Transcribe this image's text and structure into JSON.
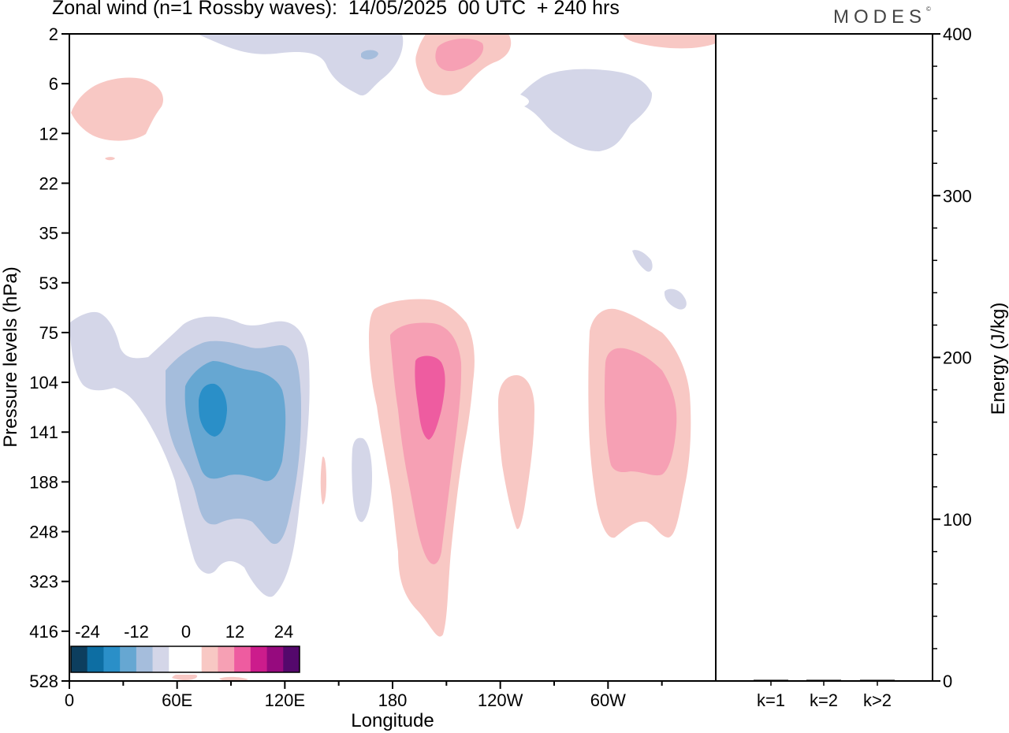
{
  "title": "Zonal wind (n=1 Rossby waves):  14/05/2025  00 UTC  + 240 hrs",
  "logo": "MODES",
  "logo_mark": "©",
  "colors": {
    "neg": [
      "#0d3e5e",
      "#0d6ea3",
      "#2a8fc8",
      "#66a7d2",
      "#a5bddc",
      "#d4d6e8"
    ],
    "zero": "#ffffff",
    "pos": [
      "#f8c8c4",
      "#f6a0b4",
      "#ee5ca0",
      "#cc1c8c",
      "#960a7e",
      "#54086c"
    ]
  },
  "chart_data": [
    {
      "type": "heatmap",
      "title": "Zonal wind (n=1 Rossby waves):  14/05/2025  00 UTC  + 240 hrs",
      "xlabel": "Longitude",
      "ylabel": "Pressure levels (hPa)",
      "x_ticks": [
        "0",
        "60E",
        "120E",
        "180",
        "120W",
        "60W"
      ],
      "x_tick_values": [
        0,
        60,
        120,
        180,
        240,
        300
      ],
      "xlim": [
        0,
        360
      ],
      "y_ticks": [
        "2",
        "6",
        "12",
        "22",
        "35",
        "53",
        "75",
        "104",
        "141",
        "188",
        "248",
        "323",
        "416",
        "528"
      ],
      "y_scale": "pressure levels (top 2 hPa, bottom 528 hPa)",
      "colorbar": {
        "labels": [
          "-24",
          "-12",
          "0",
          "12",
          "24"
        ],
        "levels": [
          -28,
          -24,
          -20,
          -16,
          -12,
          -8,
          -4,
          4,
          8,
          12,
          16,
          20,
          24,
          28
        ],
        "placement": "bottom-left"
      },
      "features": [
        {
          "sign": "negative",
          "center_lon": 80,
          "center_level": "104-141",
          "min_value": -20
        },
        {
          "sign": "positive",
          "center_lon": 195,
          "center_level": "104-141",
          "max_value": 16
        },
        {
          "sign": "positive",
          "center_lon": 305,
          "center_level": "104-141",
          "max_value": 12
        },
        {
          "sign": "positive",
          "center_lon": 250,
          "center_level": "104-188",
          "max_value": 8
        },
        {
          "sign": "negative",
          "center_lon": 165,
          "center_level": "141-248",
          "min_value": -4
        },
        {
          "sign": "positive",
          "center_lon": 210,
          "center_level": "2-6",
          "max_value": 12
        },
        {
          "sign": "negative",
          "center_lon": 165,
          "center_level": "2-6",
          "min_value": -12
        },
        {
          "sign": "negative",
          "center_lon": 295,
          "center_level": "6-12",
          "min_value": -4
        },
        {
          "sign": "positive",
          "center_lon": 20,
          "center_level": "6-12",
          "max_value": 8
        }
      ]
    },
    {
      "type": "bar",
      "categories": [
        "k=1",
        "k=2",
        "k>2"
      ],
      "values": [
        0.4,
        0.1,
        0.2
      ],
      "ylabel": "Energy (J/kg)",
      "ylim": [
        0,
        400
      ],
      "y_ticks": [
        "0",
        "100",
        "200",
        "300",
        "400"
      ]
    }
  ]
}
